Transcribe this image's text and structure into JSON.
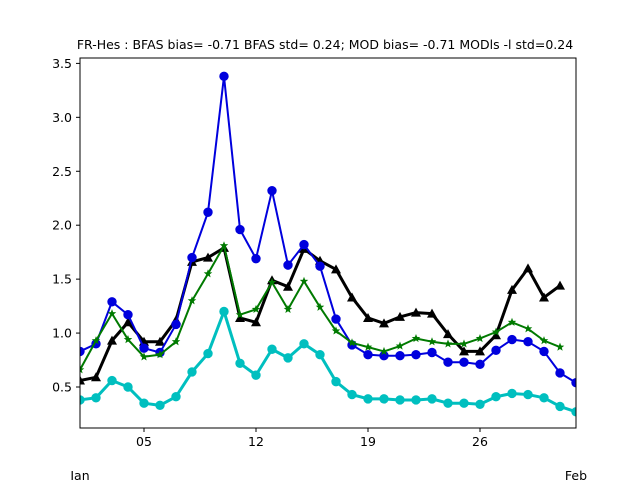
{
  "chart_data": {
    "type": "line",
    "title": "FR-Hes   : BFAS bias= -0.71 BFAS std= 0.24; MOD bias= -0.71 MODls -l std=0.24",
    "xlabel": "",
    "ylabel": "",
    "x_days": [
      1,
      2,
      3,
      4,
      5,
      6,
      7,
      8,
      9,
      10,
      11,
      12,
      13,
      14,
      15,
      16,
      17,
      18,
      19,
      20,
      21,
      22,
      23,
      24,
      25,
      26,
      27,
      28,
      29,
      30,
      31,
      32
    ],
    "xlim": [
      1,
      32
    ],
    "ylim": [
      0.12,
      3.55
    ],
    "x_ticks": [
      {
        "value": 5,
        "label": "05"
      },
      {
        "value": 12,
        "label": "12"
      },
      {
        "value": 19,
        "label": "19"
      },
      {
        "value": 26,
        "label": "26"
      }
    ],
    "month_labels": [
      {
        "value": 1,
        "label": "Jan"
      },
      {
        "value": 32,
        "label": "Feb"
      }
    ],
    "y_ticks": [
      0.5,
      1.0,
      1.5,
      2.0,
      2.5,
      3.0,
      3.5
    ],
    "y_tick_labels": [
      "0.5",
      "1.0",
      "1.5",
      "2.0",
      "2.5",
      "3.0",
      "3.5"
    ],
    "grid": false,
    "legend": "none",
    "series": [
      {
        "color": "#000000",
        "marker": "triangle",
        "width": 3,
        "values": [
          0.56,
          0.59,
          0.93,
          1.1,
          0.92,
          0.92,
          1.12,
          1.66,
          1.7,
          1.79,
          1.14,
          1.1,
          1.49,
          1.43,
          1.78,
          1.67,
          1.59,
          1.33,
          1.14,
          1.09,
          1.15,
          1.19,
          1.18,
          0.99,
          0.83,
          0.83,
          0.98,
          1.4,
          1.6,
          1.33,
          1.44
        ]
      },
      {
        "color": "#0000dd",
        "marker": "circle",
        "width": 2,
        "values": [
          0.83,
          0.9,
          1.29,
          1.17,
          0.86,
          0.82,
          1.08,
          1.7,
          2.12,
          3.38,
          1.96,
          1.69,
          2.32,
          1.63,
          1.82,
          1.62,
          1.13,
          0.89,
          0.8,
          0.79,
          0.79,
          0.8,
          0.82,
          0.73,
          0.73,
          0.71,
          0.84,
          0.94,
          0.92,
          0.83,
          0.63,
          0.54
        ]
      },
      {
        "color": "#007a00",
        "marker": "star",
        "width": 2,
        "values": [
          0.66,
          0.93,
          1.18,
          0.94,
          0.78,
          0.8,
          0.92,
          1.3,
          1.55,
          1.81,
          1.17,
          1.22,
          1.47,
          1.22,
          1.48,
          1.24,
          1.02,
          0.91,
          0.87,
          0.83,
          0.88,
          0.95,
          0.92,
          0.9,
          0.9,
          0.95,
          1.01,
          1.1,
          1.04,
          0.93,
          0.87
        ]
      },
      {
        "color": "#00bfbf",
        "marker": "circle",
        "width": 3,
        "values": [
          0.38,
          0.4,
          0.56,
          0.5,
          0.35,
          0.33,
          0.41,
          0.64,
          0.81,
          1.2,
          0.72,
          0.61,
          0.85,
          0.77,
          0.9,
          0.8,
          0.55,
          0.43,
          0.39,
          0.39,
          0.38,
          0.38,
          0.39,
          0.35,
          0.35,
          0.34,
          0.41,
          0.44,
          0.43,
          0.4,
          0.32,
          0.27
        ]
      }
    ]
  }
}
